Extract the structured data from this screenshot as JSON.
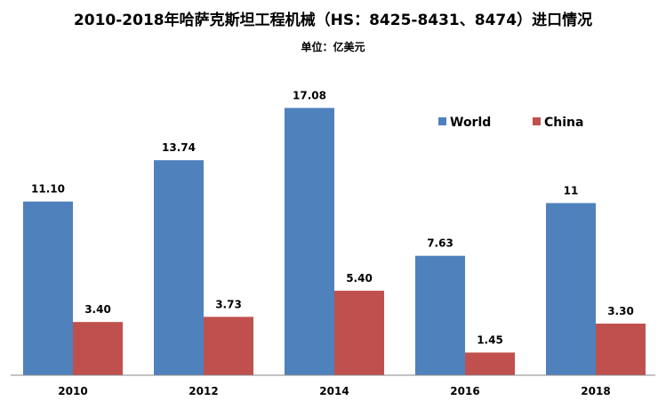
{
  "chart_data": {
    "type": "bar",
    "title": "2010-2018年哈萨克斯坦工程机械（HS：8425-8431、8474）进口情况",
    "subtitle": "单位：亿美元",
    "categories": [
      "2010",
      "2012",
      "2014",
      "2016",
      "2018"
    ],
    "series": [
      {
        "name": "World",
        "color": "#4F81BD",
        "values": [
          11.1,
          13.74,
          17.08,
          7.63,
          11
        ],
        "labels": [
          "11.10",
          "13.74",
          "17.08",
          "7.63",
          "11"
        ]
      },
      {
        "name": "China",
        "color": "#C0504D",
        "values": [
          3.4,
          3.73,
          5.4,
          1.45,
          3.3
        ],
        "labels": [
          "3.40",
          "3.73",
          "5.40",
          "1.45",
          "3.30"
        ]
      }
    ],
    "ylim": [
      0,
      18.5
    ],
    "grid": false,
    "legend_position": "top-right"
  }
}
